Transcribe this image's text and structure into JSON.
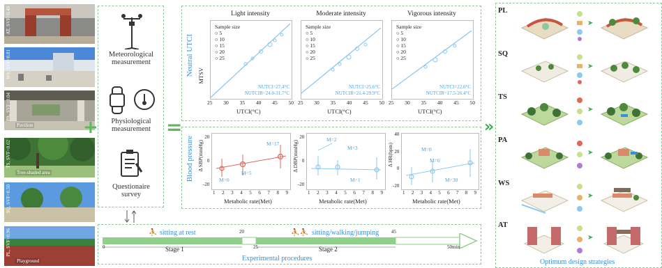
{
  "colors": {
    "green": "#5cb85c",
    "blue": "#3b8fd8",
    "light_blue": "#4aa3df",
    "red": "#e0675e",
    "panel_border": "#8fc79a"
  },
  "sites": [
    {
      "label": "AT, SVF=0.40",
      "name": "",
      "colors": [
        "#9a3c2c",
        "#c46a4a",
        "#d6c2a8"
      ]
    },
    {
      "label": "WS, SVF=0.81",
      "name": "",
      "colors": [
        "#3f7fd0",
        "#a8c8ea",
        "#d9d6cc"
      ]
    },
    {
      "label": "PA, SVF=0.04",
      "name": "Pavilion",
      "colors": [
        "#6f6f64",
        "#a7a597",
        "#d7d3c4"
      ]
    },
    {
      "label": "TS, SVF=0.02",
      "name": "Tree-shaded area",
      "colors": [
        "#2f5f2a",
        "#4e8a3c",
        "#9ac07c"
      ]
    },
    {
      "label": "SQ, SVF=0.50",
      "name": "",
      "colors": [
        "#5b9adf",
        "#3c7a36",
        "#c9c2a6"
      ]
    },
    {
      "label": "PL, SVF=0.96",
      "name": "Playground",
      "colors": [
        "#6fa6e0",
        "#3a7f3a",
        "#9c3f35"
      ]
    }
  ],
  "measurements": {
    "meteorological": "Meteorological\nmeasurement",
    "physiological": "Physiological\nmeasurement",
    "questionnaire": "Questionaire\nsurvey",
    "icons": [
      "weather-station-icon",
      "smartwatch-icon",
      "thermometer-icon",
      "clipboard-icon"
    ]
  },
  "utci_section": {
    "section_label": "Neutral UTCI",
    "panels": [
      {
        "title": "Light intensity",
        "stat1": "NUTCI=27.4°C",
        "stat2": "NUTCIR=24.0-31.7°C"
      },
      {
        "title": "Moderate intensity",
        "stat1": "NUTCI=25.6°C",
        "stat2": "NUTCIR=21.4-29.9°C"
      },
      {
        "title": "Vigorous intensity",
        "stat1": "NUTCI=22.0°C",
        "stat2": "NUTCIR=17.5-26.4°C"
      }
    ],
    "ylabel": "MTSV",
    "xlabel": "UTCI(°C)",
    "xticks": [
      "25",
      "30",
      "35",
      "40",
      "45",
      "50"
    ],
    "legend_title": "Sample size",
    "legend_items": [
      "5",
      "10",
      "15",
      "20",
      "25"
    ]
  },
  "bp_section": {
    "section_label": "Blood pressure",
    "xlabel": "Metabolic rate(Met)",
    "xticks": [
      "1",
      "2",
      "3",
      "4",
      "5",
      "6",
      "7",
      "8",
      "9"
    ],
    "panels": [
      {
        "ylabel": "Δ SBP(mmHg)",
        "yticks": [
          "20",
          "0",
          "-20"
        ],
        "tags": [
          "M=0",
          "M=5",
          "M=17"
        ]
      },
      {
        "ylabel": "Δ DBP(mmHg)",
        "yticks": [
          "20",
          "0",
          "-20"
        ],
        "tags": [
          "M=2",
          "M=3",
          "M=1"
        ]
      },
      {
        "ylabel": "Δ HR(bpm)",
        "yticks": [
          "40",
          "20",
          "0",
          "-20"
        ],
        "tags": [
          "M=0",
          "M=6",
          "M=30"
        ]
      }
    ]
  },
  "timeline": {
    "title": "Experimental procedures",
    "activity1": "sitting at rest",
    "activity2": "sitting/walking/jumping",
    "stage1": "Stage 1",
    "stage2": "Stage 2",
    "marks": {
      "t0": "0",
      "t20": "20",
      "t25": "25",
      "t45": "45",
      "end": "50min"
    }
  },
  "strategies": {
    "title": "Optimum design strategies",
    "rows": [
      "PL",
      "SQ",
      "TS",
      "PA",
      "WS",
      "AT"
    ]
  }
}
